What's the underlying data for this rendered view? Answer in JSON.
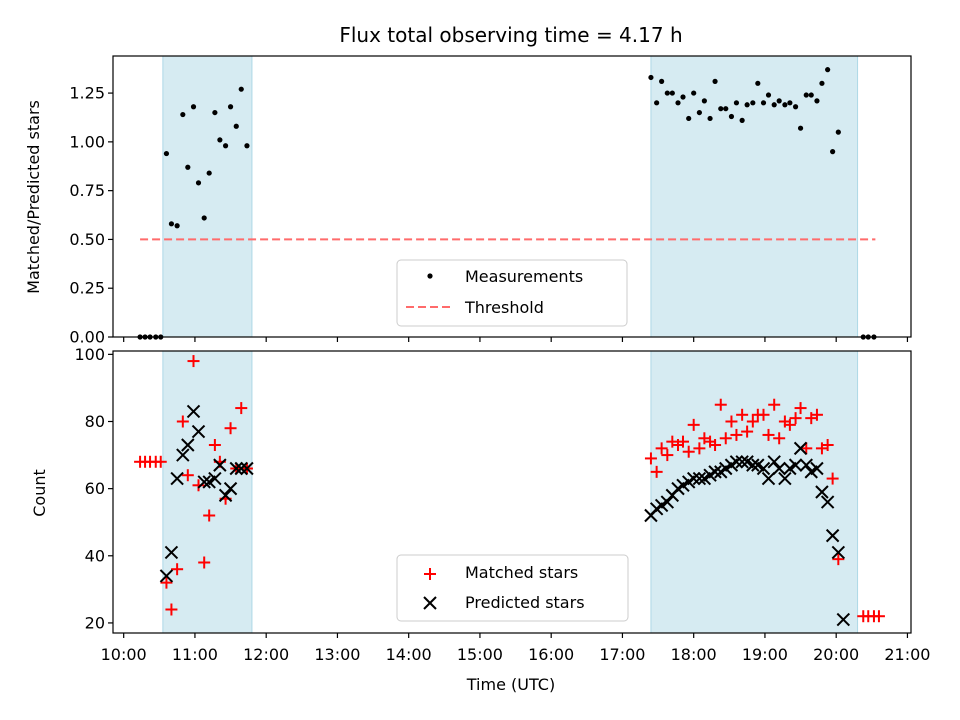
{
  "figure": {
    "title": "Flux total observing time = 4.17 h",
    "xlabel": "Time (UTC)"
  },
  "chart_data": [
    {
      "type": "scatter",
      "panel": "top",
      "title": "Flux total observing time = 4.17 h",
      "xlabel": "",
      "ylabel": "Matched/Predicted stars",
      "xlim": [
        9.85,
        21.05
      ],
      "ylim": [
        0,
        1.44
      ],
      "yticks": [
        0.0,
        0.25,
        0.5,
        0.75,
        1.0,
        1.25
      ],
      "ytick_labels": [
        "0.00",
        "0.25",
        "0.50",
        "0.75",
        "1.00",
        "1.25"
      ],
      "x_unit": "hours UTC",
      "shaded_intervals": [
        [
          10.55,
          11.8
        ],
        [
          17.4,
          20.3
        ]
      ],
      "shade_color": "#add8e6",
      "grid": false,
      "legend_position": "lower-center",
      "series": [
        {
          "name": "Measurements",
          "marker": "dot",
          "color": "#000000",
          "points": [
            [
              10.23,
              0.0
            ],
            [
              10.3,
              0.0
            ],
            [
              10.37,
              0.0
            ],
            [
              10.45,
              0.0
            ],
            [
              10.52,
              0.0
            ],
            [
              10.6,
              0.94
            ],
            [
              10.67,
              0.58
            ],
            [
              10.75,
              0.57
            ],
            [
              10.83,
              1.14
            ],
            [
              10.9,
              0.87
            ],
            [
              10.98,
              1.18
            ],
            [
              11.05,
              0.79
            ],
            [
              11.13,
              0.61
            ],
            [
              11.2,
              0.84
            ],
            [
              11.28,
              1.15
            ],
            [
              11.35,
              1.01
            ],
            [
              11.43,
              0.98
            ],
            [
              11.5,
              1.18
            ],
            [
              11.58,
              1.08
            ],
            [
              11.65,
              1.27
            ],
            [
              11.73,
              0.98
            ],
            [
              17.4,
              1.33
            ],
            [
              17.48,
              1.2
            ],
            [
              17.55,
              1.31
            ],
            [
              17.63,
              1.25
            ],
            [
              17.7,
              1.25
            ],
            [
              17.78,
              1.2
            ],
            [
              17.85,
              1.23
            ],
            [
              17.93,
              1.12
            ],
            [
              18.0,
              1.25
            ],
            [
              18.08,
              1.15
            ],
            [
              18.15,
              1.21
            ],
            [
              18.23,
              1.12
            ],
            [
              18.3,
              1.31
            ],
            [
              18.38,
              1.17
            ],
            [
              18.45,
              1.17
            ],
            [
              18.53,
              1.13
            ],
            [
              18.6,
              1.2
            ],
            [
              18.68,
              1.11
            ],
            [
              18.75,
              1.19
            ],
            [
              18.83,
              1.2
            ],
            [
              18.9,
              1.3
            ],
            [
              18.98,
              1.2
            ],
            [
              19.05,
              1.24
            ],
            [
              19.13,
              1.19
            ],
            [
              19.2,
              1.21
            ],
            [
              19.28,
              1.19
            ],
            [
              19.35,
              1.2
            ],
            [
              19.43,
              1.18
            ],
            [
              19.5,
              1.07
            ],
            [
              19.58,
              1.24
            ],
            [
              19.65,
              1.24
            ],
            [
              19.73,
              1.21
            ],
            [
              19.8,
              1.3
            ],
            [
              19.88,
              1.37
            ],
            [
              19.95,
              0.95
            ],
            [
              20.03,
              1.05
            ],
            [
              20.38,
              0.0
            ],
            [
              20.45,
              0.0
            ],
            [
              20.53,
              0.0
            ]
          ]
        },
        {
          "name": "Threshold",
          "type": "line",
          "style": "dashed",
          "color": "#ff6b6b",
          "points": [
            [
              10.23,
              0.5
            ],
            [
              20.55,
              0.5
            ]
          ]
        }
      ]
    },
    {
      "type": "scatter",
      "panel": "bottom",
      "xlabel": "Time (UTC)",
      "ylabel": "Count",
      "xlim": [
        9.85,
        21.05
      ],
      "ylim": [
        17,
        101
      ],
      "yticks": [
        20,
        40,
        60,
        80,
        100
      ],
      "ytick_labels": [
        "20",
        "40",
        "60",
        "80",
        "100"
      ],
      "xticks": [
        10,
        11,
        12,
        13,
        14,
        15,
        16,
        17,
        18,
        19,
        20,
        21
      ],
      "xtick_labels": [
        "10:00",
        "11:00",
        "12:00",
        "13:00",
        "14:00",
        "15:00",
        "16:00",
        "17:00",
        "18:00",
        "19:00",
        "20:00",
        "21:00"
      ],
      "shaded_intervals": [
        [
          10.55,
          11.8
        ],
        [
          17.4,
          20.3
        ]
      ],
      "shade_color": "#add8e6",
      "grid": false,
      "legend_position": "lower-center",
      "series": [
        {
          "name": "Matched stars",
          "marker": "plus",
          "color": "#ff0000",
          "points": [
            [
              10.23,
              68
            ],
            [
              10.3,
              68
            ],
            [
              10.37,
              68
            ],
            [
              10.45,
              68
            ],
            [
              10.52,
              68
            ],
            [
              10.6,
              32
            ],
            [
              10.67,
              24
            ],
            [
              10.75,
              36
            ],
            [
              10.83,
              80
            ],
            [
              10.9,
              64
            ],
            [
              10.98,
              98
            ],
            [
              11.05,
              61
            ],
            [
              11.13,
              38
            ],
            [
              11.2,
              52
            ],
            [
              11.28,
              73
            ],
            [
              11.35,
              68
            ],
            [
              11.43,
              57
            ],
            [
              11.5,
              78
            ],
            [
              11.58,
              66
            ],
            [
              11.65,
              84
            ],
            [
              11.73,
              66
            ],
            [
              17.4,
              69
            ],
            [
              17.48,
              65
            ],
            [
              17.55,
              72
            ],
            [
              17.63,
              70
            ],
            [
              17.7,
              74
            ],
            [
              17.78,
              73
            ],
            [
              17.85,
              74
            ],
            [
              17.93,
              71
            ],
            [
              18.0,
              79
            ],
            [
              18.08,
              72
            ],
            [
              18.15,
              75
            ],
            [
              18.23,
              74
            ],
            [
              18.3,
              73
            ],
            [
              18.38,
              85
            ],
            [
              18.45,
              75
            ],
            [
              18.53,
              80
            ],
            [
              18.6,
              76
            ],
            [
              18.68,
              82
            ],
            [
              18.75,
              77
            ],
            [
              18.83,
              80
            ],
            [
              18.9,
              82
            ],
            [
              18.98,
              82
            ],
            [
              19.05,
              76
            ],
            [
              19.13,
              85
            ],
            [
              19.2,
              75
            ],
            [
              19.28,
              80
            ],
            [
              19.35,
              79
            ],
            [
              19.43,
              81
            ],
            [
              19.5,
              84
            ],
            [
              19.58,
              72
            ],
            [
              19.65,
              81
            ],
            [
              19.73,
              82
            ],
            [
              19.8,
              72
            ],
            [
              19.88,
              73
            ],
            [
              19.95,
              63
            ],
            [
              20.03,
              39
            ],
            [
              20.38,
              22
            ],
            [
              20.45,
              22
            ],
            [
              20.53,
              22
            ],
            [
              20.6,
              22
            ]
          ]
        },
        {
          "name": "Predicted stars",
          "marker": "x",
          "color": "#000000",
          "points": [
            [
              10.6,
              34
            ],
            [
              10.67,
              41
            ],
            [
              10.75,
              63
            ],
            [
              10.83,
              70
            ],
            [
              10.9,
              73
            ],
            [
              10.98,
              83
            ],
            [
              11.05,
              77
            ],
            [
              11.13,
              62
            ],
            [
              11.2,
              62
            ],
            [
              11.28,
              63
            ],
            [
              11.35,
              67
            ],
            [
              11.43,
              58
            ],
            [
              11.5,
              60
            ],
            [
              11.58,
              66
            ],
            [
              11.65,
              66
            ],
            [
              11.73,
              66
            ],
            [
              17.4,
              52
            ],
            [
              17.48,
              54
            ],
            [
              17.55,
              55
            ],
            [
              17.63,
              56
            ],
            [
              17.7,
              58
            ],
            [
              17.78,
              60
            ],
            [
              17.85,
              61
            ],
            [
              17.93,
              62
            ],
            [
              18.0,
              63
            ],
            [
              18.08,
              63
            ],
            [
              18.15,
              63
            ],
            [
              18.23,
              64
            ],
            [
              18.3,
              65
            ],
            [
              18.38,
              65
            ],
            [
              18.45,
              66
            ],
            [
              18.53,
              67
            ],
            [
              18.6,
              68
            ],
            [
              18.68,
              68
            ],
            [
              18.75,
              68
            ],
            [
              18.83,
              67
            ],
            [
              18.9,
              67
            ],
            [
              18.98,
              66
            ],
            [
              19.05,
              63
            ],
            [
              19.13,
              68
            ],
            [
              19.2,
              66
            ],
            [
              19.28,
              63
            ],
            [
              19.35,
              66
            ],
            [
              19.43,
              67
            ],
            [
              19.5,
              72
            ],
            [
              19.58,
              67
            ],
            [
              19.65,
              65
            ],
            [
              19.73,
              66
            ],
            [
              19.8,
              59
            ],
            [
              19.88,
              56
            ],
            [
              19.95,
              46
            ],
            [
              20.03,
              41
            ],
            [
              20.1,
              21
            ]
          ]
        }
      ]
    }
  ]
}
